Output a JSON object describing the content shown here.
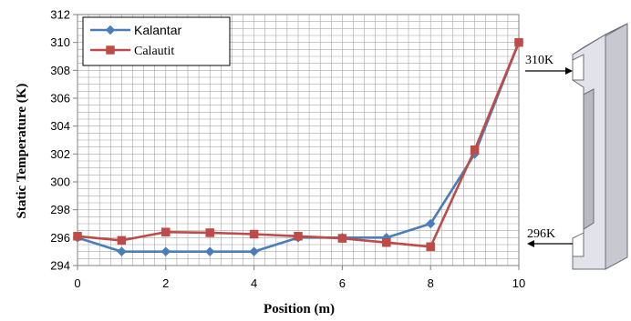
{
  "chart_data": {
    "type": "line",
    "xlabel": "Position (m)",
    "ylabel": "Static Temperature (K)",
    "xlim": [
      0,
      10
    ],
    "ylim": [
      294,
      312
    ],
    "x_ticks": [
      "0",
      "2",
      "4",
      "6",
      "8",
      "10"
    ],
    "y_ticks": [
      "294",
      "296",
      "298",
      "300",
      "302",
      "304",
      "306",
      "308",
      "310",
      "312"
    ],
    "grid": true,
    "legend_position": "top-left",
    "series": [
      {
        "name": "Kalantar",
        "color": "#4a7ebb",
        "marker": "diamond",
        "x": [
          0,
          1,
          2,
          3,
          4,
          5,
          6,
          7,
          8,
          9,
          10
        ],
        "y": [
          296.0,
          295.0,
          295.0,
          295.0,
          295.0,
          296.0,
          296.0,
          296.0,
          297.0,
          302.0,
          310.0
        ]
      },
      {
        "name": "Calautit",
        "color": "#be4b48",
        "marker": "square",
        "x": [
          0,
          1,
          2,
          3,
          4,
          5,
          6,
          7,
          8,
          9,
          10
        ],
        "y": [
          296.1,
          295.8,
          296.4,
          296.35,
          296.25,
          296.1,
          295.95,
          295.65,
          295.35,
          302.3,
          310.0
        ]
      }
    ],
    "annotations": [
      {
        "text": "310K"
      },
      {
        "text": "296K"
      }
    ]
  },
  "colors": {
    "grid": "#a6a6a6",
    "axis": "#808080",
    "duct_front": "#c8c8d0",
    "duct_side": "#e6e6ee",
    "duct_edge": "#6e6e78"
  }
}
